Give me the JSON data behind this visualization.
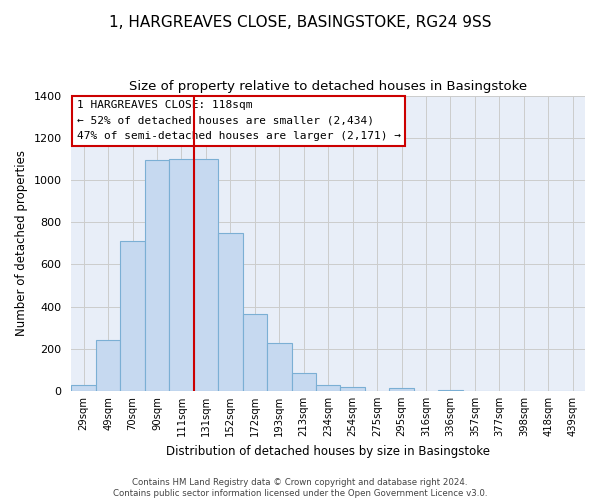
{
  "title": "1, HARGREAVES CLOSE, BASINGSTOKE, RG24 9SS",
  "subtitle": "Size of property relative to detached houses in Basingstoke",
  "xlabel": "Distribution of detached houses by size in Basingstoke",
  "ylabel": "Number of detached properties",
  "bar_labels": [
    "29sqm",
    "49sqm",
    "70sqm",
    "90sqm",
    "111sqm",
    "131sqm",
    "152sqm",
    "172sqm",
    "193sqm",
    "213sqm",
    "234sqm",
    "254sqm",
    "275sqm",
    "295sqm",
    "316sqm",
    "336sqm",
    "357sqm",
    "377sqm",
    "398sqm",
    "418sqm",
    "439sqm"
  ],
  "bar_values": [
    30,
    240,
    710,
    1095,
    1100,
    1100,
    750,
    365,
    225,
    85,
    30,
    20,
    0,
    15,
    0,
    5,
    0,
    0,
    0,
    0,
    0
  ],
  "bar_color": "#c6d9f0",
  "bar_edge_color": "#7bafd4",
  "vline_x_index": 5,
  "vline_color": "#cc0000",
  "annotation_line1": "1 HARGREAVES CLOSE: 118sqm",
  "annotation_line2": "← 52% of detached houses are smaller (2,434)",
  "annotation_line3": "47% of semi-detached houses are larger (2,171) →",
  "ylim": [
    0,
    1400
  ],
  "footnote": "Contains HM Land Registry data © Crown copyright and database right 2024.\nContains public sector information licensed under the Open Government Licence v3.0.",
  "background_color": "#ffffff",
  "grid_color": "#cccccc",
  "grid_bg_color": "#e8eef8",
  "title_fontsize": 11,
  "subtitle_fontsize": 9.5,
  "ylabel_fontsize": 8.5,
  "xlabel_fontsize": 8.5
}
